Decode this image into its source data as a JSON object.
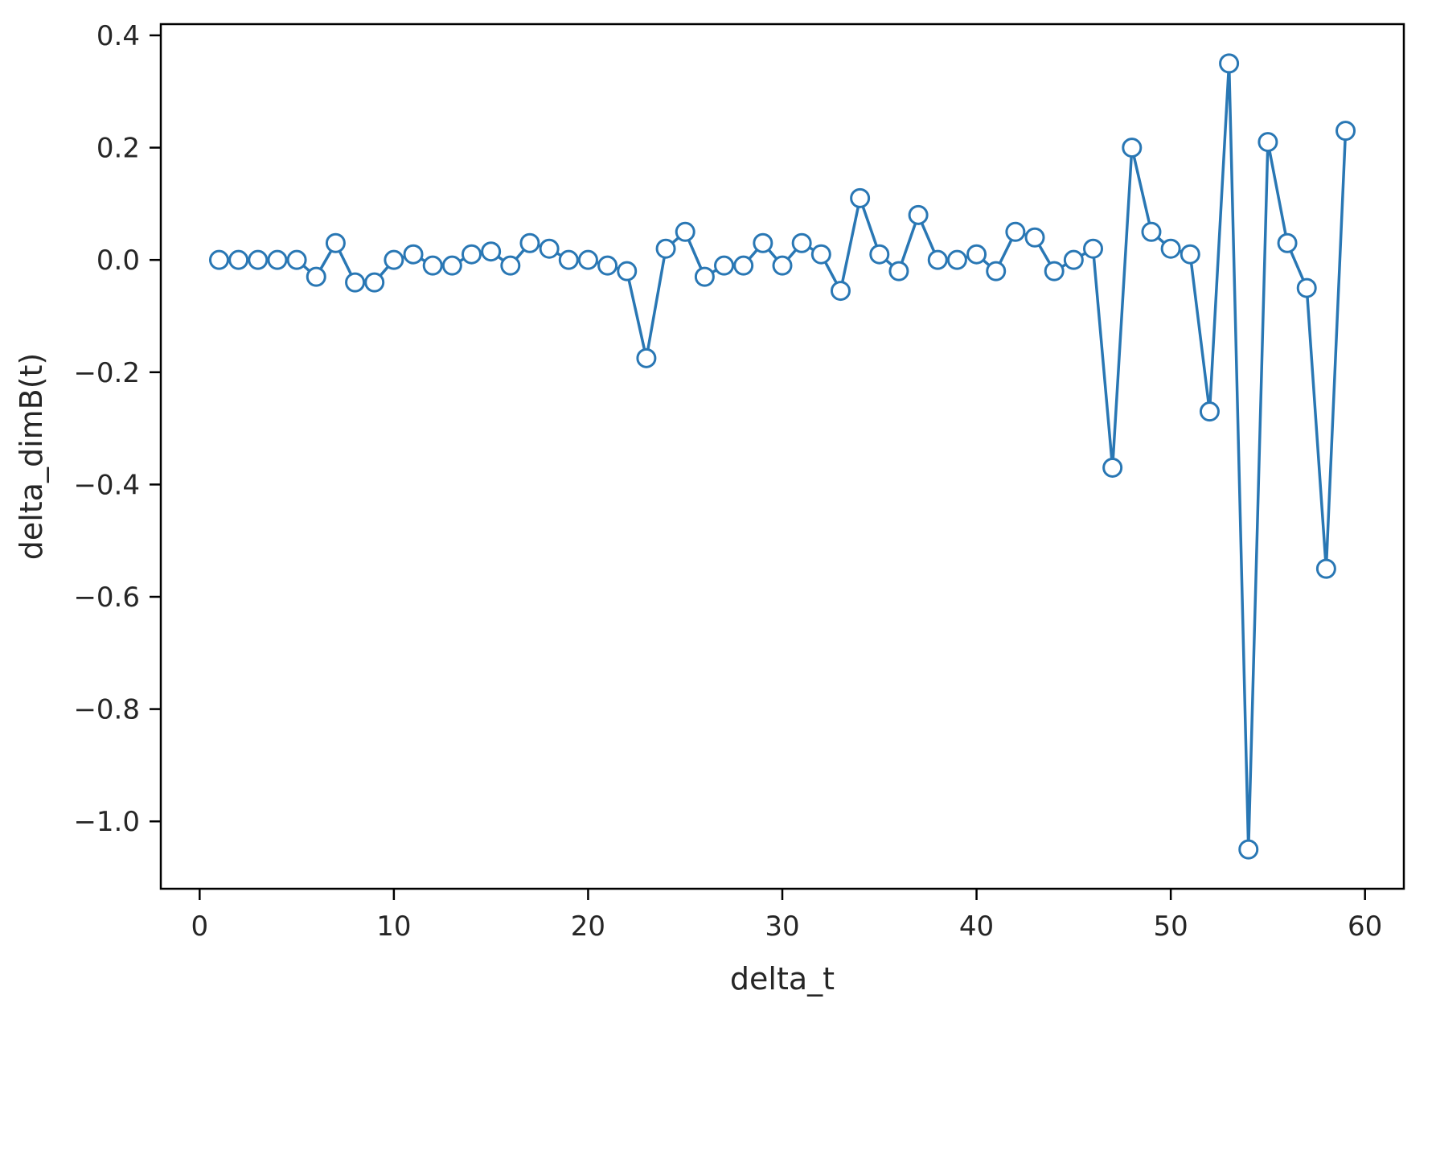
{
  "chart_data": {
    "type": "line",
    "title": "",
    "xlabel": "delta_t",
    "ylabel": "delta_dimB(t)",
    "xlim": [
      -2,
      62
    ],
    "ylim": [
      -1.12,
      0.42
    ],
    "grid": false,
    "legend": null,
    "line_color": "#2977b4",
    "marker": "open-circle",
    "marker_fill": "#ffffff",
    "xtick_values": [
      0,
      10,
      20,
      30,
      40,
      50,
      60
    ],
    "xtick_labels": [
      "0",
      "10",
      "20",
      "30",
      "40",
      "50",
      "60"
    ],
    "ytick_values": [
      0.4,
      0.2,
      0.0,
      -0.2,
      -0.4,
      -0.6,
      -0.8,
      -1.0
    ],
    "ytick_labels": [
      "0.4",
      "0.2",
      "0.0",
      "−0.2",
      "−0.4",
      "−0.6",
      "−0.8",
      "−1.0"
    ],
    "x": [
      1,
      2,
      3,
      4,
      5,
      6,
      7,
      8,
      9,
      10,
      11,
      12,
      13,
      14,
      15,
      16,
      17,
      18,
      19,
      20,
      21,
      22,
      23,
      24,
      25,
      26,
      27,
      28,
      29,
      30,
      31,
      32,
      33,
      34,
      35,
      36,
      37,
      38,
      39,
      40,
      41,
      42,
      43,
      44,
      45,
      46,
      47,
      48,
      49,
      50,
      51,
      52,
      53,
      54,
      55,
      56,
      57,
      58,
      59
    ],
    "y": [
      0.0,
      0.0,
      0.0,
      0.0,
      0.0,
      -0.03,
      0.03,
      -0.04,
      -0.04,
      0.0,
      0.01,
      -0.01,
      -0.01,
      0.01,
      0.015,
      -0.01,
      0.03,
      0.02,
      0.0,
      0.0,
      -0.01,
      -0.02,
      -0.175,
      0.02,
      0.05,
      -0.03,
      -0.01,
      -0.01,
      0.03,
      -0.01,
      0.03,
      0.01,
      -0.055,
      0.11,
      0.01,
      -0.02,
      0.08,
      0.0,
      0.0,
      0.01,
      -0.02,
      0.05,
      0.04,
      -0.02,
      0.0,
      0.02,
      -0.37,
      0.2,
      0.05,
      0.02,
      0.01,
      -0.27,
      0.35,
      -1.05,
      0.21,
      0.03,
      -0.05,
      -0.55,
      0.23
    ]
  }
}
